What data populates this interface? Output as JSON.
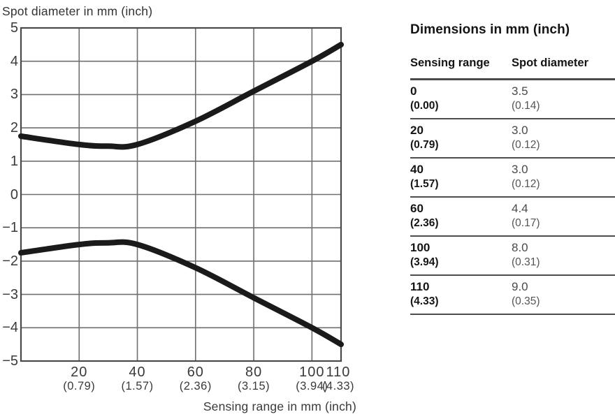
{
  "chart_data": {
    "type": "line",
    "title": "Spot diameter in mm (inch)",
    "xlabel": "Sensing range in mm (inch)",
    "ylabel": "Spot diameter in mm (inch)",
    "xlim": [
      0,
      110
    ],
    "ylim": [
      -5,
      5
    ],
    "grid": true,
    "legend": "none",
    "line_color": "#1a1a1a",
    "grid_color": "#6f6f6f",
    "axis_color": "#4a4a4a",
    "y_ticks": [
      {
        "value": 5,
        "label": "5"
      },
      {
        "value": 4,
        "label": "4"
      },
      {
        "value": 3,
        "label": "3"
      },
      {
        "value": 2,
        "label": "2"
      },
      {
        "value": 1,
        "label": "1"
      },
      {
        "value": 0,
        "label": "0"
      },
      {
        "value": -1,
        "label": "−1"
      },
      {
        "value": -2,
        "label": "−2"
      },
      {
        "value": -3,
        "label": "−3"
      },
      {
        "value": -4,
        "label": "−4"
      },
      {
        "value": -5,
        "label": "−5"
      }
    ],
    "x_ticks": [
      {
        "value": 20,
        "label": "20",
        "sub_label": "(0.79)"
      },
      {
        "value": 40,
        "label": "40",
        "sub_label": "(1.57)"
      },
      {
        "value": 60,
        "label": "60",
        "sub_label": "(2.36)"
      },
      {
        "value": 80,
        "label": "80",
        "sub_label": "(3.15)"
      },
      {
        "value": 100,
        "label": "100",
        "sub_label": "(3.94)"
      },
      {
        "value": 110,
        "label": "110",
        "sub_label": "(4.33)"
      }
    ],
    "series": [
      {
        "name": "upper",
        "points": [
          [
            0,
            1.75
          ],
          [
            20,
            1.5
          ],
          [
            30,
            1.45
          ],
          [
            40,
            1.5
          ],
          [
            60,
            2.2
          ],
          [
            80,
            3.1
          ],
          [
            100,
            4.0
          ],
          [
            110,
            4.5
          ]
        ]
      },
      {
        "name": "lower",
        "points": [
          [
            0,
            -1.75
          ],
          [
            20,
            -1.5
          ],
          [
            30,
            -1.45
          ],
          [
            40,
            -1.5
          ],
          [
            60,
            -2.2
          ],
          [
            80,
            -3.1
          ],
          [
            100,
            -4.0
          ],
          [
            110,
            -4.5
          ]
        ]
      }
    ]
  },
  "table": {
    "title": "Dimensions in mm (inch)",
    "columns": [
      "Sensing range",
      "Spot diameter"
    ],
    "rows": [
      {
        "range_mm": "0",
        "range_inch": "(0.00)",
        "spot_mm": "3.5",
        "spot_inch": "(0.14)"
      },
      {
        "range_mm": "20",
        "range_inch": "(0.79)",
        "spot_mm": "3.0",
        "spot_inch": "(0.12)"
      },
      {
        "range_mm": "40",
        "range_inch": "(1.57)",
        "spot_mm": "3.0",
        "spot_inch": "(0.12)"
      },
      {
        "range_mm": "60",
        "range_inch": "(2.36)",
        "spot_mm": "4.4",
        "spot_inch": "(0.17)"
      },
      {
        "range_mm": "100",
        "range_inch": "(3.94)",
        "spot_mm": "8.0",
        "spot_inch": "(0.31)"
      },
      {
        "range_mm": "110",
        "range_inch": "(4.33)",
        "spot_mm": "9.0",
        "spot_inch": "(0.35)"
      }
    ]
  }
}
